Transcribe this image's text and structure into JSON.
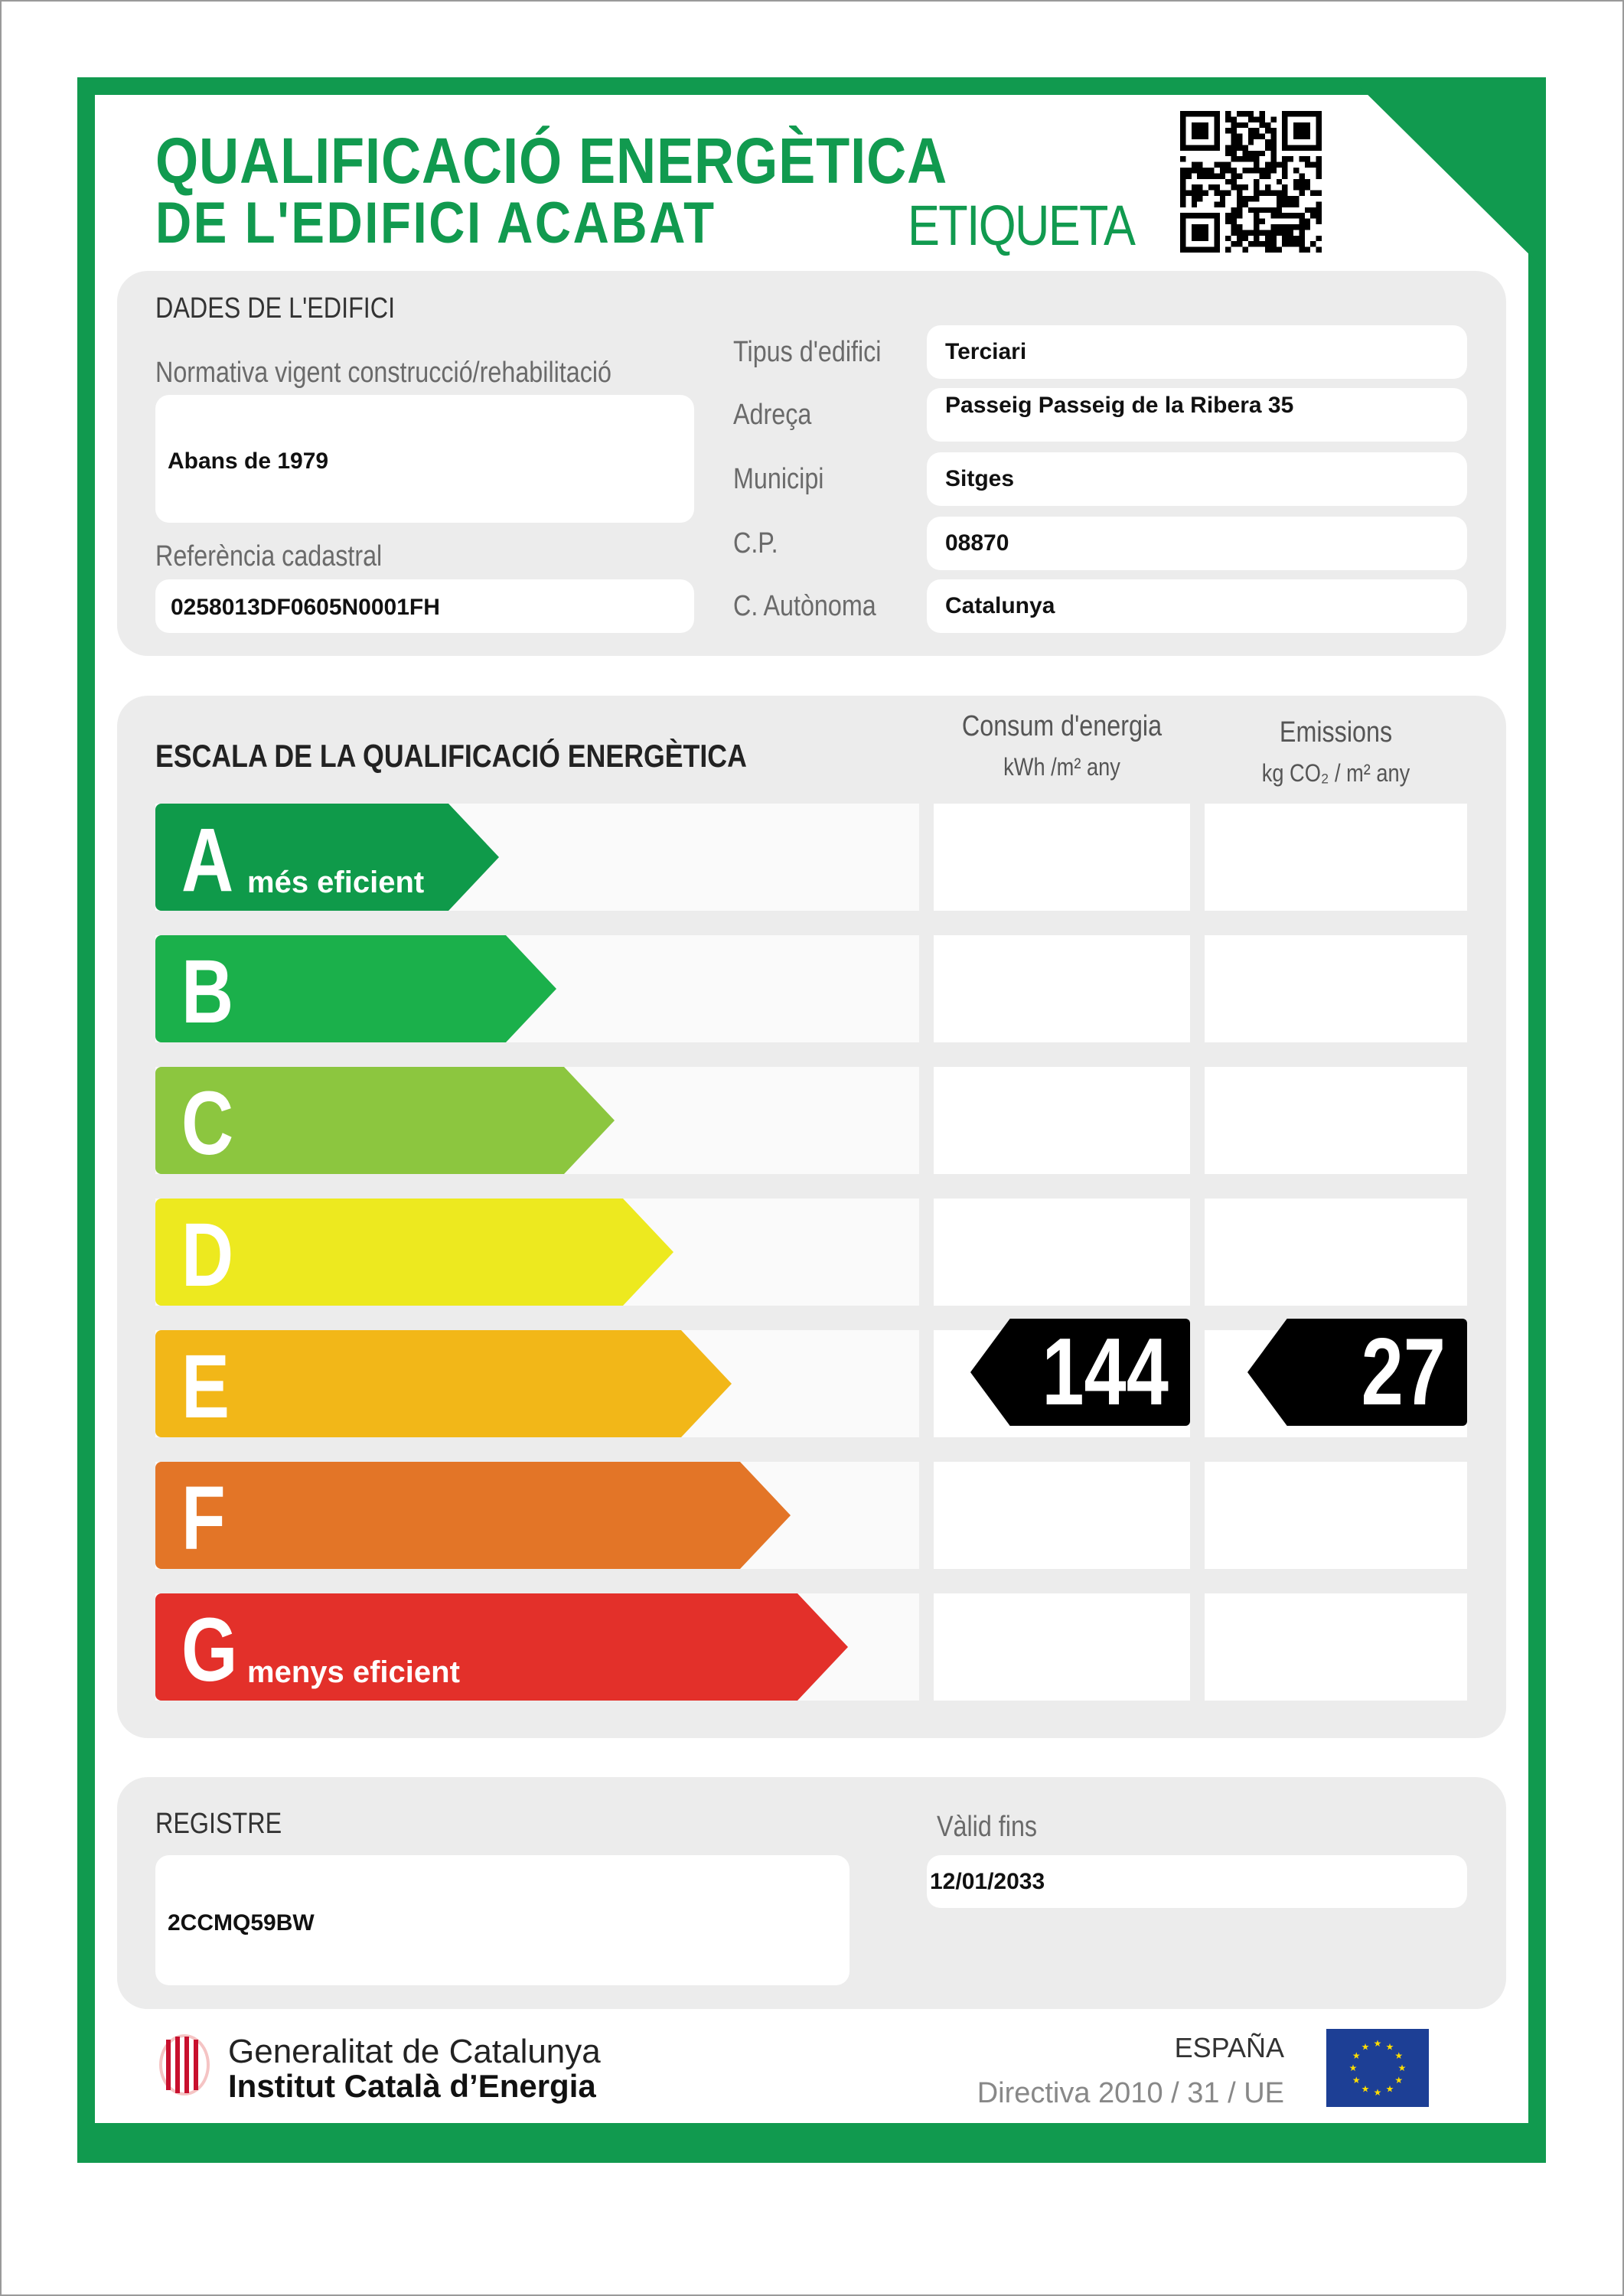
{
  "header": {
    "title_line1": "QUALIFICACIÓ ENERGÈTICA",
    "title_line2": "DE L'EDIFICI ACABAT",
    "label": "ETIQUETA"
  },
  "building": {
    "section_title": "DADES DE L'EDIFICI",
    "normativa_label": "Normativa vigent construcció/rehabilitació",
    "normativa_value": "Abans de 1979",
    "cadastral_label": "Referència cadastral",
    "cadastral_value": "0258013DF0605N0001FH",
    "fields": [
      {
        "label": "Tipus d'edifici",
        "value": "Terciari"
      },
      {
        "label": "Adreça",
        "value": "Passeig Passeig de la Ribera 35"
      },
      {
        "label": "Municipi",
        "value": "Sitges"
      },
      {
        "label": "C.P.",
        "value": "08870"
      },
      {
        "label": "C. Autònoma",
        "value": "Catalunya"
      }
    ]
  },
  "scale": {
    "section_title": "ESCALA DE LA QUALIFICACIÓ ENERGÈTICA",
    "consumption_header": "Consum d'energia",
    "consumption_unit": "kWh /m² any",
    "emissions_header": "Emissions",
    "emissions_unit": "kg CO₂ / m² any",
    "classes": [
      {
        "letter": "A",
        "caption": "més eficient",
        "color": "#0f9a4a"
      },
      {
        "letter": "B",
        "caption": "",
        "color": "#1bb04b"
      },
      {
        "letter": "C",
        "caption": "",
        "color": "#8cc63f"
      },
      {
        "letter": "D",
        "caption": "",
        "color": "#ede91f"
      },
      {
        "letter": "E",
        "caption": "",
        "color": "#f2b718"
      },
      {
        "letter": "F",
        "caption": "",
        "color": "#e37527"
      },
      {
        "letter": "G",
        "caption": "menys eficient",
        "color": "#e3302a"
      }
    ],
    "rating_class": "E",
    "consumption_value": "144",
    "emissions_value": "27"
  },
  "registry": {
    "label": "REGISTRE",
    "value": "2CCMQ59BW",
    "valid_label": "Vàlid fins",
    "valid_value": "12/01/2033"
  },
  "footer": {
    "org_line1": "Generalitat de Catalunya",
    "org_line2": "Institut Català d’Energia",
    "country": "ESPAÑA",
    "directive": "Directiva 2010 / 31 / UE"
  },
  "colors": {
    "brand_green": "#119a4f",
    "panel": "#ececec"
  }
}
